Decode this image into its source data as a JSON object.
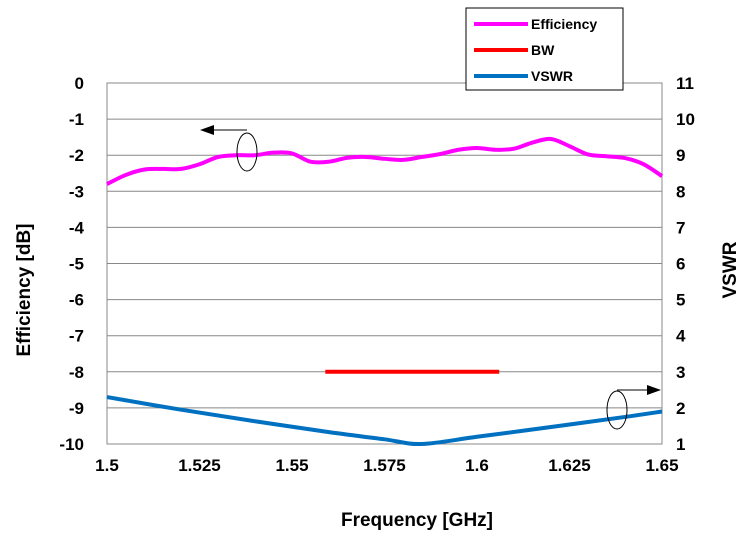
{
  "chart_data": {
    "type": "line",
    "xlabel": "Frequency [GHz]",
    "ylabel_left": "Efficiency [dB]",
    "ylabel_right": "VSWR",
    "xlim": [
      1.5,
      1.65
    ],
    "ylim_left": [
      -10,
      0
    ],
    "ylim_right": [
      1,
      11
    ],
    "grid": "horizontal",
    "legend_position": "top-right",
    "x_ticks": [
      "1.5",
      "1.525",
      "1.55",
      "1.575",
      "1.6",
      "1.625",
      "1.65"
    ],
    "y_ticks_left": [
      "0",
      "-1",
      "-2",
      "-3",
      "-4",
      "-5",
      "-6",
      "-7",
      "-8",
      "-9",
      "-10"
    ],
    "y_ticks_right": [
      "11",
      "10",
      "9",
      "8",
      "7",
      "6",
      "5",
      "4",
      "3",
      "2",
      "1"
    ],
    "series": [
      {
        "name": "Efficiency",
        "axis": "left",
        "color": "#ff00ff",
        "x": [
          1.5,
          1.505,
          1.51,
          1.515,
          1.52,
          1.525,
          1.53,
          1.535,
          1.54,
          1.545,
          1.55,
          1.555,
          1.56,
          1.565,
          1.57,
          1.575,
          1.58,
          1.585,
          1.59,
          1.595,
          1.6,
          1.605,
          1.61,
          1.615,
          1.62,
          1.625,
          1.63,
          1.635,
          1.64,
          1.645,
          1.65
        ],
        "y": [
          -2.8,
          -2.55,
          -2.4,
          -2.38,
          -2.38,
          -2.25,
          -2.05,
          -2.0,
          -2.0,
          -1.93,
          -1.95,
          -2.18,
          -2.18,
          -2.07,
          -2.05,
          -2.1,
          -2.13,
          -2.05,
          -1.97,
          -1.85,
          -1.8,
          -1.85,
          -1.82,
          -1.65,
          -1.55,
          -1.75,
          -1.98,
          -2.03,
          -2.08,
          -2.25,
          -2.58
        ]
      },
      {
        "name": "BW",
        "axis": "left",
        "color": "#ff0000",
        "x": [
          1.559,
          1.606
        ],
        "y": [
          -8,
          -8
        ]
      },
      {
        "name": "VSWR",
        "axis": "right",
        "color": "#0070c0",
        "x": [
          1.5,
          1.52,
          1.54,
          1.56,
          1.575,
          1.585,
          1.6,
          1.62,
          1.64,
          1.65
        ],
        "y": [
          2.3,
          1.95,
          1.63,
          1.33,
          1.13,
          1.0,
          1.2,
          1.47,
          1.75,
          1.9
        ]
      }
    ]
  }
}
